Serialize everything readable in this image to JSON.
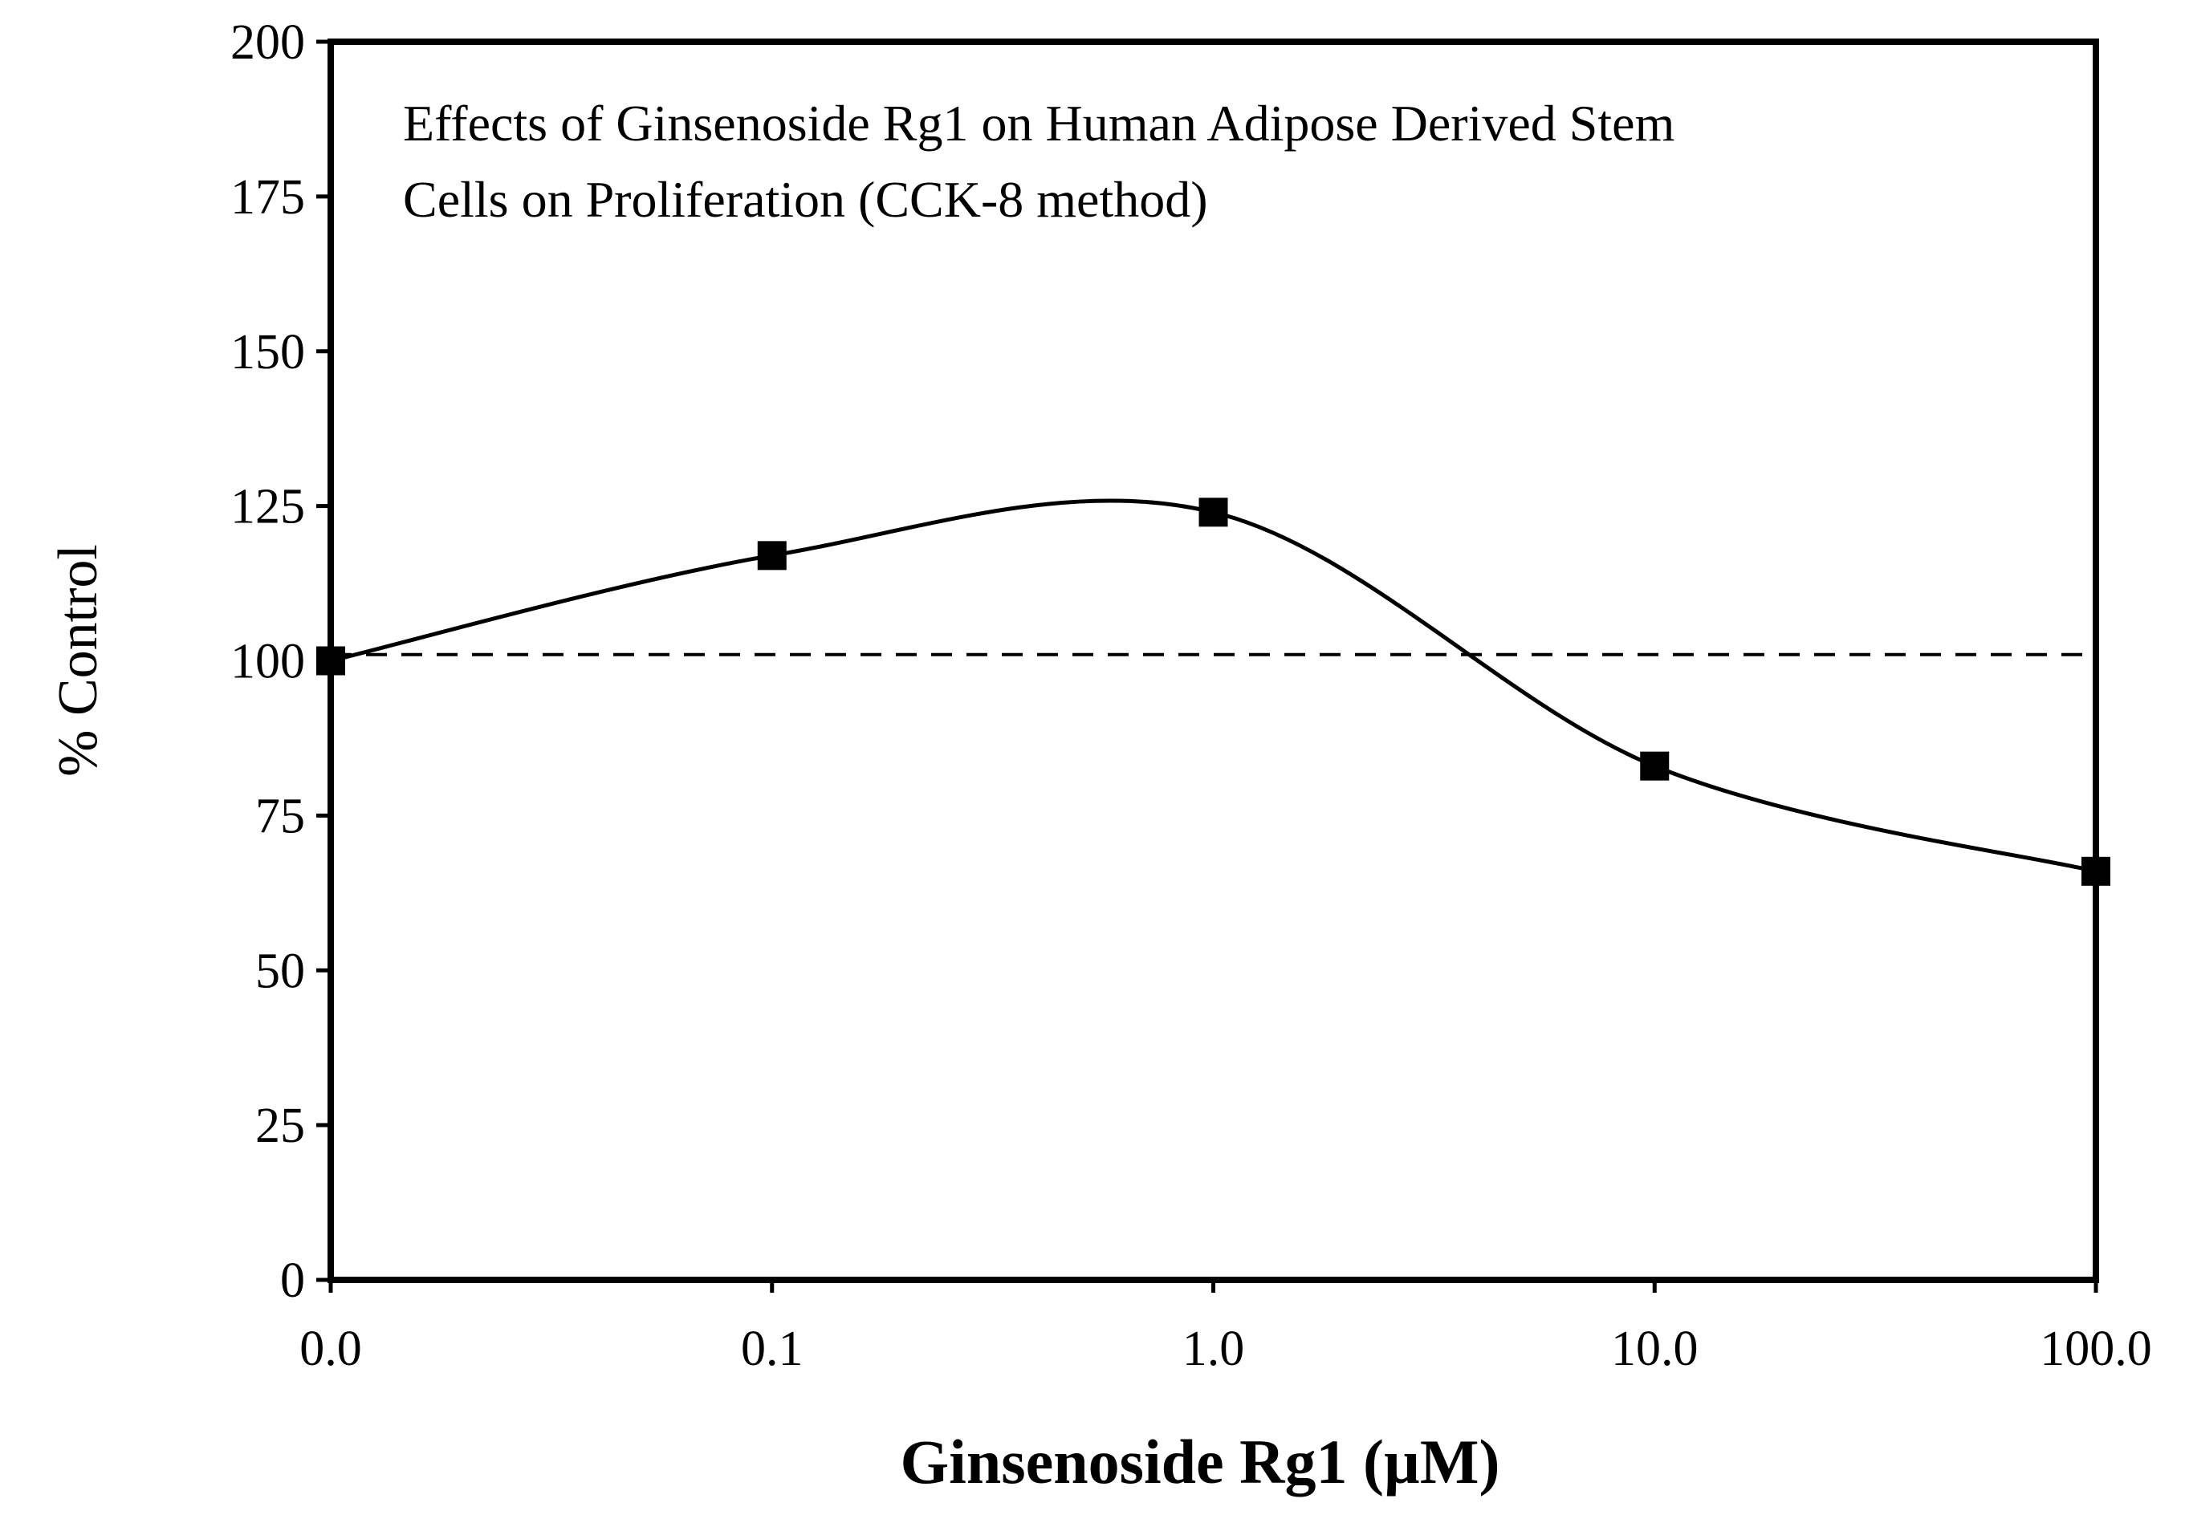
{
  "chart_data": {
    "type": "line",
    "title_lines": [
      "Effects of Ginsenoside Rg1 on Human Adipose Derived Stem",
      "Cells on Proliferation (CCK-8 method)"
    ],
    "xlabel": "Ginsenoside Rg1 (µM)",
    "ylabel": "% Control",
    "categories": [
      "0.0",
      "0.1",
      "1.0",
      "10.0",
      "100.0"
    ],
    "ylim": [
      0,
      200
    ],
    "yticks": [
      "0",
      "25",
      "50",
      "75",
      "100",
      "125",
      "150",
      "175",
      "200"
    ],
    "series": [
      {
        "name": "Ginsenoside Rg1",
        "marker": "square",
        "smooth": true,
        "values": [
          100,
          117,
          124,
          83,
          66
        ]
      }
    ],
    "reference_line": {
      "y": 101,
      "style": "dashed"
    },
    "grid": false,
    "colors": {
      "line": "#000000",
      "marker": "#000000",
      "background": "#ffffff"
    }
  }
}
